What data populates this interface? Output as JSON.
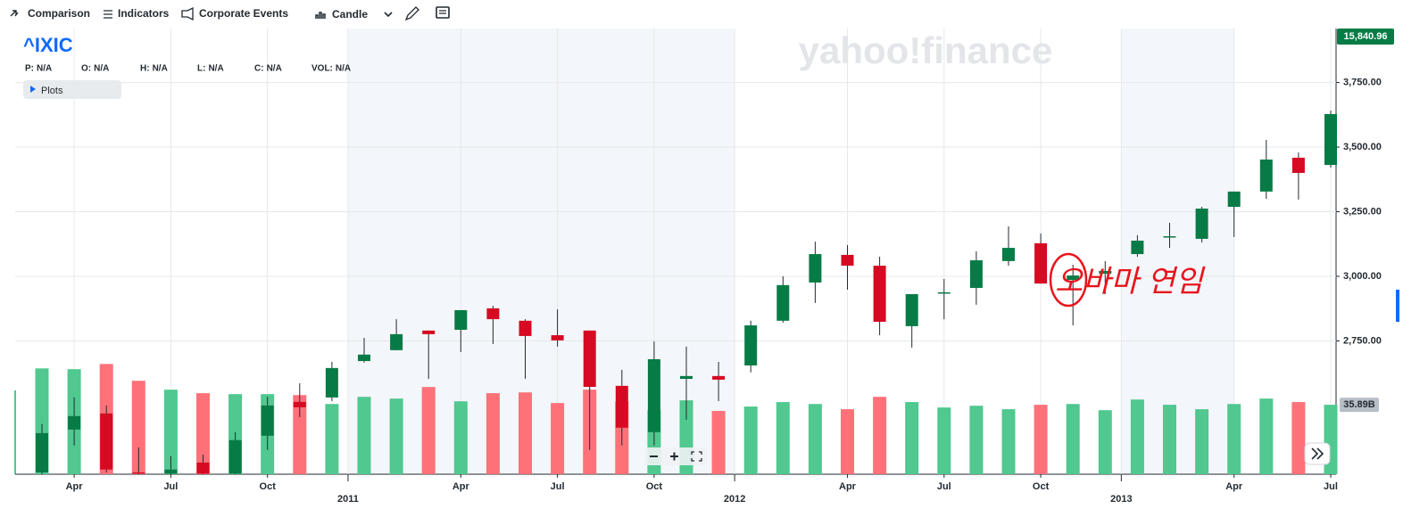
{
  "toolbar": [
    "Comparison",
    "Indicators",
    "Corporate Events",
    "Candle"
  ],
  "legend": [
    {
      "label": "P:",
      "value": "N/A"
    },
    {
      "label": "O:",
      "value": "N/A"
    },
    {
      "label": "H:",
      "value": "N/A"
    },
    {
      "label": "L:",
      "value": "N/A"
    },
    {
      "label": "C:",
      "value": "N/A"
    },
    {
      "label": "VOL:",
      "value": "N/A"
    }
  ],
  "plots": "Plots",
  "chart_data": {
    "type": "candlestick",
    "symbol": "^IXIC",
    "watermark": "yahoo!finance",
    "last_price_label": "15,840.96",
    "annotation": "오바마 연임",
    "categories": [
      null,
      "Apr",
      null,
      null,
      "Jul",
      null,
      null,
      "Oct",
      null,
      null,
      null,
      null,
      null,
      "Apr",
      null,
      null,
      "Jul",
      null,
      null,
      "Oct",
      null,
      null,
      null,
      null,
      null,
      "Apr",
      null,
      null,
      "Jul",
      null,
      null,
      "Oct",
      null,
      null,
      null,
      null,
      null,
      "Apr",
      null,
      null,
      "Jul"
    ],
    "year_labels": [
      "2011",
      "2012",
      "2013"
    ],
    "open": [
      2241,
      2407,
      2469,
      2241,
      2236,
      2279,
      2236,
      2383,
      2514,
      2531,
      2672,
      2714,
      2790,
      2793,
      2876,
      2828,
      2772,
      2790,
      2576,
      2397,
      2603,
      2614,
      2655,
      2828,
      2976,
      3083,
      3041,
      2807,
      2934,
      2955,
      3059,
      3128,
      2986,
      3010,
      3086,
      3152,
      3145,
      3269,
      3328,
      3459,
      3431
    ],
    "high": [
      2428,
      2531,
      2500,
      2338,
      2304,
      2310,
      2397,
      2534,
      2586,
      2669,
      2762,
      2834,
      2790,
      2869,
      2886,
      2834,
      2872,
      2790,
      2638,
      2748,
      2728,
      2669,
      2828,
      3000,
      3134,
      3121,
      3076,
      2931,
      2990,
      3097,
      3193,
      3166,
      3045,
      3059,
      3159,
      3207,
      3269,
      3328,
      3528,
      3479,
      3641
    ],
    "low": [
      2234,
      2345,
      2241,
      2234,
      2234,
      2234,
      2234,
      2328,
      2455,
      2517,
      2666,
      2714,
      2603,
      2707,
      2738,
      2603,
      2728,
      2328,
      2345,
      2345,
      2445,
      2517,
      2628,
      2821,
      2897,
      2948,
      2772,
      2724,
      2834,
      2890,
      3041,
      2972,
      2810,
      2931,
      3076,
      3110,
      3131,
      3152,
      3300,
      3297,
      3421
    ],
    "close": [
      2393,
      2459,
      2252,
      2236,
      2252,
      2236,
      2366,
      2500,
      2493,
      2645,
      2697,
      2776,
      2776,
      2869,
      2834,
      2769,
      2752,
      2572,
      2414,
      2679,
      2614,
      2600,
      2810,
      2966,
      3086,
      3041,
      2824,
      2931,
      2938,
      3062,
      3110,
      2972,
      3003,
      3021,
      3138,
      3155,
      3262,
      3328,
      3452,
      3400,
      3628
    ],
    "volume": [
      54.7,
      54.3,
      57,
      48.3,
      43.7,
      41.9,
      41.4,
      41.4,
      40.9,
      36.3,
      40,
      39.1,
      45.1,
      37.7,
      41.9,
      42.3,
      36.8,
      43.7,
      37.7,
      33.1,
      38.2,
      32.7,
      35,
      37.3,
      36.3,
      33.6,
      40,
      37.3,
      34.5,
      35.4,
      33.6,
      35.9,
      36.3,
      33.1,
      38.6,
      35.9,
      33.6,
      36.3,
      39.1,
      37.3,
      35.89
    ],
    "volume_label": "35.89B",
    "ylim": [
      2234,
      3959
    ],
    "yticks": [
      {
        "value": 2750,
        "label": "2,750.00"
      },
      {
        "value": 3000,
        "label": "3,000.00"
      },
      {
        "value": 3250,
        "label": "3,250.00"
      },
      {
        "value": 3500,
        "label": "3,500.00"
      },
      {
        "value": 3750,
        "label": "3,750.00"
      }
    ],
    "grid": true,
    "up_color": "#077b46",
    "down_color": "#d60a22",
    "volume_up_color": "#50c88f",
    "volume_down_color": "#fe7178"
  }
}
